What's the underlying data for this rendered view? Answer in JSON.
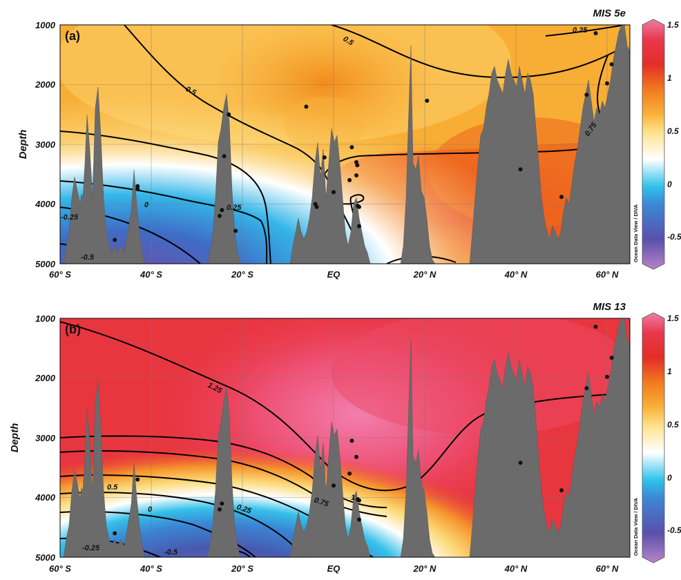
{
  "chart_data": [
    {
      "type": "heatmap",
      "panel_label": "(a)",
      "title": "MIS 5e",
      "xlabel": "",
      "ylabel": "Depth",
      "x_ticks": [
        "60° S",
        "40° S",
        "20° S",
        "EQ",
        "20° N",
        "40° N",
        "60° N"
      ],
      "y_ticks": [
        "1000",
        "2000",
        "3000",
        "4000",
        "5000"
      ],
      "xlim": [
        -60,
        65
      ],
      "ylim": [
        1000,
        5000
      ],
      "grid": true,
      "colorbar": {
        "range": [
          -0.75,
          1.5
        ],
        "ticks": [
          "1.5",
          "1",
          "0.5",
          "0",
          "-0.5"
        ]
      },
      "watermark": "Ocean Data View / DIVA",
      "contour_labels": [
        "0.5",
        "0.5",
        "0.25",
        "0.75",
        "0",
        "0.25",
        "-0.25",
        "-0.5"
      ],
      "stations": [
        {
          "lat": -48,
          "depth": 4600
        },
        {
          "lat": -43,
          "depth": 3700
        },
        {
          "lat": -43,
          "depth": 3750
        },
        {
          "lat": -25,
          "depth": 4200
        },
        {
          "lat": -24.5,
          "depth": 4100
        },
        {
          "lat": -24,
          "depth": 3200
        },
        {
          "lat": -23,
          "depth": 2500
        },
        {
          "lat": -21.5,
          "depth": 4450
        },
        {
          "lat": -6,
          "depth": 2370
        },
        {
          "lat": -4,
          "depth": 4000
        },
        {
          "lat": -3.7,
          "depth": 4050
        },
        {
          "lat": -2,
          "depth": 3220
        },
        {
          "lat": 0,
          "depth": 3800
        },
        {
          "lat": 3.5,
          "depth": 3600
        },
        {
          "lat": 4,
          "depth": 3050
        },
        {
          "lat": 5,
          "depth": 3300
        },
        {
          "lat": 5.2,
          "depth": 3350
        },
        {
          "lat": 5,
          "depth": 3520
        },
        {
          "lat": 5.3,
          "depth": 4030
        },
        {
          "lat": 5.6,
          "depth": 4050
        },
        {
          "lat": 5.6,
          "depth": 4370
        },
        {
          "lat": 20.5,
          "depth": 2270
        },
        {
          "lat": 41,
          "depth": 3420
        },
        {
          "lat": 50,
          "depth": 3880
        },
        {
          "lat": 55.5,
          "depth": 2170
        },
        {
          "lat": 57.5,
          "depth": 1140
        },
        {
          "lat": 60,
          "depth": 1980
        },
        {
          "lat": 61,
          "depth": 1660
        }
      ]
    },
    {
      "type": "heatmap",
      "panel_label": "(b)",
      "title": "MIS 13",
      "xlabel": "",
      "ylabel": "Depth",
      "x_ticks": [
        "60° S",
        "40° S",
        "20° S",
        "EQ",
        "20° N",
        "40° N",
        "60° N"
      ],
      "y_ticks": [
        "1000",
        "2000",
        "3000",
        "4000",
        "5000"
      ],
      "xlim": [
        -60,
        65
      ],
      "ylim": [
        1000,
        5000
      ],
      "grid": true,
      "colorbar": {
        "range": [
          -0.75,
          1.5
        ],
        "ticks": [
          "1.5",
          "1",
          "0.5",
          "0",
          "-0.5"
        ]
      },
      "watermark": "Ocean Data View / DIVA",
      "contour_labels": [
        "1.25",
        "0.5",
        "0",
        "0.25",
        "0.75",
        "1",
        "-0.25",
        "-0.5"
      ],
      "stations": [
        {
          "lat": -48,
          "depth": 4600
        },
        {
          "lat": -43,
          "depth": 3700
        },
        {
          "lat": -25,
          "depth": 4200
        },
        {
          "lat": -24.5,
          "depth": 4100
        },
        {
          "lat": 0,
          "depth": 3800
        },
        {
          "lat": 3.5,
          "depth": 3600
        },
        {
          "lat": 4,
          "depth": 3050
        },
        {
          "lat": 5,
          "depth": 3320
        },
        {
          "lat": 5.3,
          "depth": 4030
        },
        {
          "lat": 5.6,
          "depth": 4050
        },
        {
          "lat": 5.6,
          "depth": 4370
        },
        {
          "lat": 41,
          "depth": 3420
        },
        {
          "lat": 50,
          "depth": 3880
        },
        {
          "lat": 55.5,
          "depth": 2170
        },
        {
          "lat": 57.5,
          "depth": 1140
        },
        {
          "lat": 60,
          "depth": 1980
        },
        {
          "lat": 61,
          "depth": 1660
        }
      ]
    }
  ]
}
